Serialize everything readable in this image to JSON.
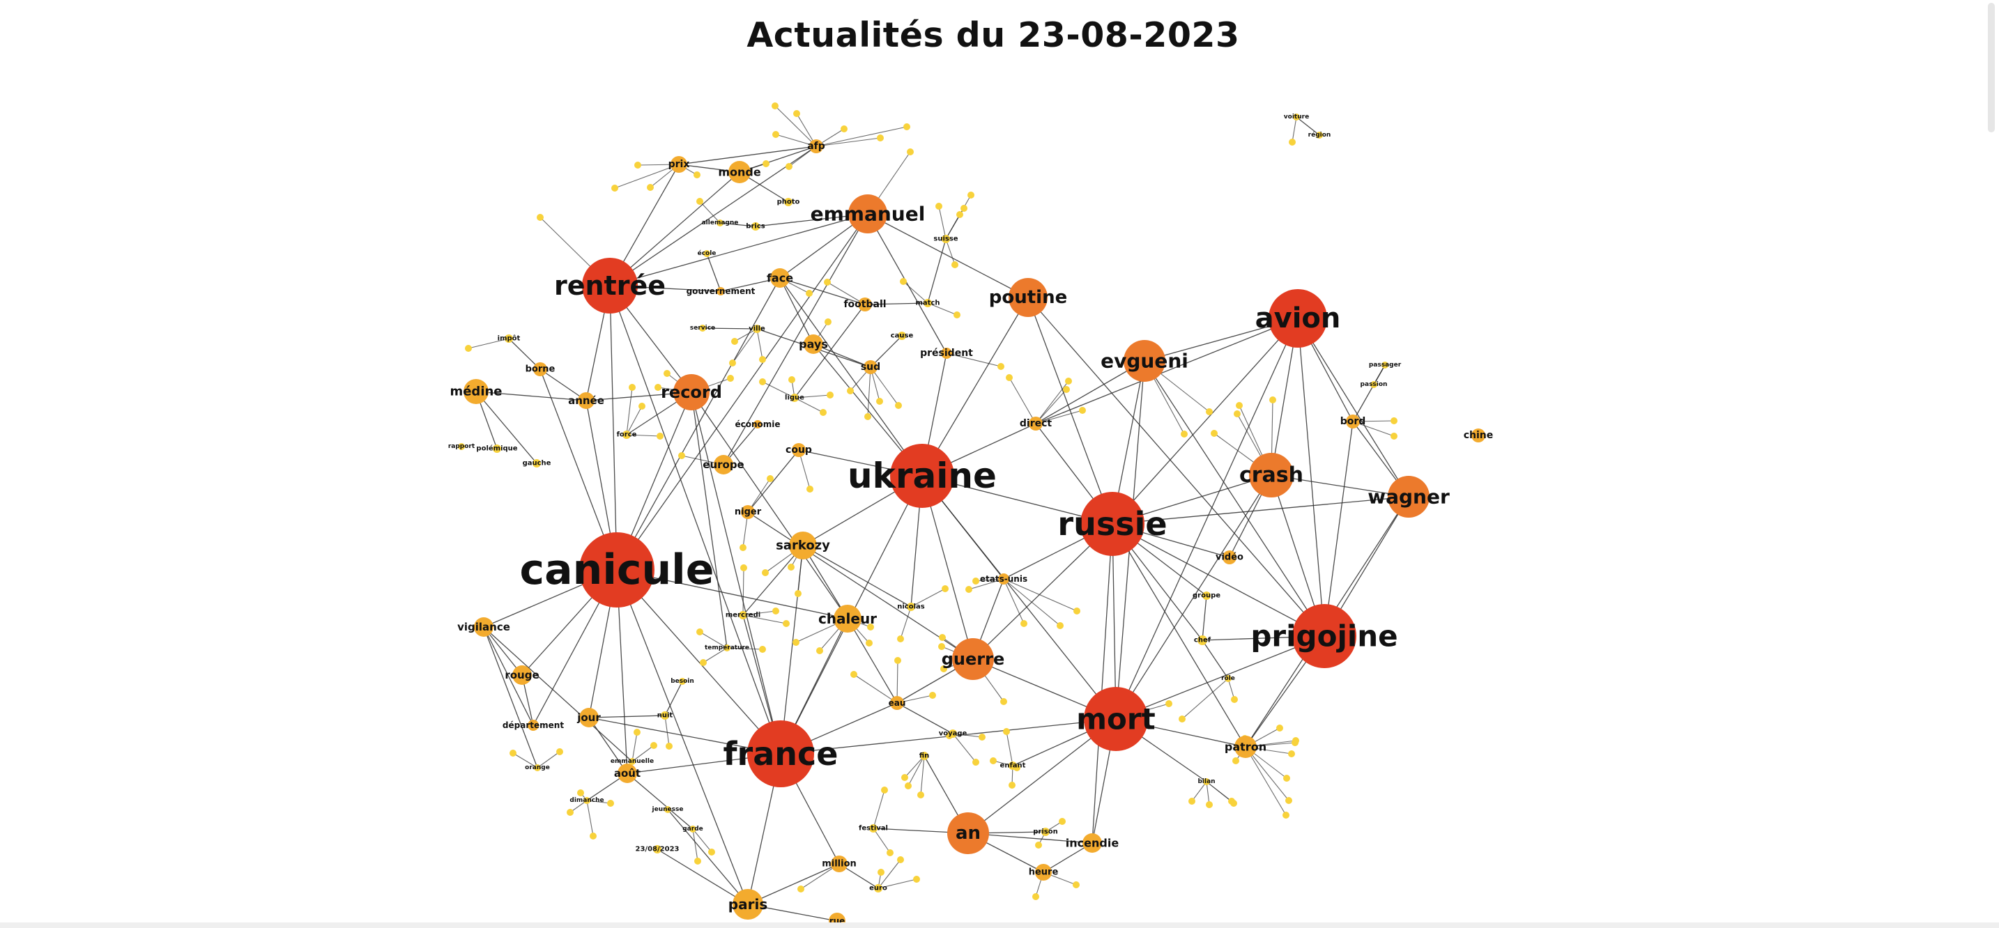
{
  "title": "Actualités du 23-08-2023",
  "colors": {
    "high": "#e23c22",
    "mid": "#ec7a2c",
    "low": "#f3ab2e",
    "tiny": "#f8d23b",
    "edge": "#2b2b2b"
  },
  "nodes": [
    {
      "id": "canicule",
      "label": "canicule",
      "group": "high"
    },
    {
      "id": "ukraine",
      "label": "ukraine",
      "group": "high"
    },
    {
      "id": "russie",
      "label": "russie",
      "group": "high"
    },
    {
      "id": "france",
      "label": "france",
      "group": "high"
    },
    {
      "id": "mort",
      "label": "mort",
      "group": "high"
    },
    {
      "id": "prigojine",
      "label": "prigojine",
      "group": "high"
    },
    {
      "id": "avion",
      "label": "avion",
      "group": "high"
    },
    {
      "id": "rentree",
      "label": "rentrée",
      "group": "high"
    },
    {
      "id": "emmanuel",
      "label": "emmanuel",
      "group": "mid"
    },
    {
      "id": "poutine",
      "label": "poutine",
      "group": "mid"
    },
    {
      "id": "evgueni",
      "label": "evgueni",
      "group": "mid"
    },
    {
      "id": "crash",
      "label": "crash",
      "group": "mid"
    },
    {
      "id": "wagner",
      "label": "wagner",
      "group": "mid"
    },
    {
      "id": "record",
      "label": "record",
      "group": "mid"
    },
    {
      "id": "guerre",
      "label": "guerre",
      "group": "mid"
    },
    {
      "id": "an",
      "label": "an",
      "group": "mid"
    },
    {
      "id": "chaleur",
      "label": "chaleur",
      "group": "low"
    },
    {
      "id": "paris",
      "label": "paris",
      "group": "low"
    },
    {
      "id": "sarkozy",
      "label": "sarkozy",
      "group": "low"
    },
    {
      "id": "medine",
      "label": "médine",
      "group": "low"
    },
    {
      "id": "monde",
      "label": "monde",
      "group": "low"
    },
    {
      "id": "prix",
      "label": "prix",
      "group": "low"
    },
    {
      "id": "afp",
      "label": "afp",
      "group": "low"
    },
    {
      "id": "face",
      "label": "face",
      "group": "low"
    },
    {
      "id": "football",
      "label": "football",
      "group": "low"
    },
    {
      "id": "gouvernement",
      "label": "gouvernement",
      "group": "low"
    },
    {
      "id": "pays",
      "label": "pays",
      "group": "low"
    },
    {
      "id": "sud",
      "label": "sud",
      "group": "low"
    },
    {
      "id": "president",
      "label": "président",
      "group": "low"
    },
    {
      "id": "direct",
      "label": "direct",
      "group": "low"
    },
    {
      "id": "bord",
      "label": "bord",
      "group": "low"
    },
    {
      "id": "chine",
      "label": "chine",
      "group": "low"
    },
    {
      "id": "economie",
      "label": "économie",
      "group": "low"
    },
    {
      "id": "coup",
      "label": "coup",
      "group": "low"
    },
    {
      "id": "europe",
      "label": "europe",
      "group": "low"
    },
    {
      "id": "niger",
      "label": "niger",
      "group": "low"
    },
    {
      "id": "annee",
      "label": "année",
      "group": "low"
    },
    {
      "id": "borne",
      "label": "borne",
      "group": "low"
    },
    {
      "id": "vigilance",
      "label": "vigilance",
      "group": "low"
    },
    {
      "id": "rouge",
      "label": "rouge",
      "group": "low"
    },
    {
      "id": "departement",
      "label": "département",
      "group": "low"
    },
    {
      "id": "jour",
      "label": "jour",
      "group": "low"
    },
    {
      "id": "aout",
      "label": "août",
      "group": "low"
    },
    {
      "id": "patron",
      "label": "patron",
      "group": "low"
    },
    {
      "id": "incendie",
      "label": "incendie",
      "group": "low"
    },
    {
      "id": "video",
      "label": "vidéo",
      "group": "low"
    },
    {
      "id": "etatsunis",
      "label": "etats-unis",
      "group": "low"
    },
    {
      "id": "nicolas",
      "label": "nicolas",
      "group": "tiny"
    },
    {
      "id": "eau",
      "label": "eau",
      "group": "low"
    },
    {
      "id": "million",
      "label": "million",
      "group": "low"
    },
    {
      "id": "heure",
      "label": "heure",
      "group": "low"
    },
    {
      "id": "rue",
      "label": "rue",
      "group": "low"
    },
    {
      "id": "euro",
      "label": "euro",
      "group": "tiny"
    },
    {
      "id": "enfant",
      "label": "enfant",
      "group": "tiny"
    },
    {
      "id": "fin",
      "label": "fin",
      "group": "tiny"
    },
    {
      "id": "chef",
      "label": "chef",
      "group": "tiny"
    },
    {
      "id": "groupe",
      "label": "groupe",
      "group": "tiny"
    },
    {
      "id": "cause",
      "label": "cause",
      "group": "tiny"
    },
    {
      "id": "match",
      "label": "match",
      "group": "tiny"
    },
    {
      "id": "suisse",
      "label": "suisse",
      "group": "tiny"
    },
    {
      "id": "photo",
      "label": "photo",
      "group": "tiny"
    },
    {
      "id": "brics",
      "label": "brics",
      "group": "tiny"
    },
    {
      "id": "ligue",
      "label": "ligue",
      "group": "tiny"
    },
    {
      "id": "force",
      "label": "force",
      "group": "tiny"
    },
    {
      "id": "mercredi",
      "label": "mercredi",
      "group": "tiny"
    },
    {
      "id": "impot",
      "label": "impôt",
      "group": "tiny"
    },
    {
      "id": "gauche",
      "label": "gauche",
      "group": "tiny"
    },
    {
      "id": "polemique",
      "label": "polémique",
      "group": "tiny"
    },
    {
      "id": "ville",
      "label": "ville",
      "group": "tiny"
    },
    {
      "id": "nuit",
      "label": "nuit",
      "group": "tiny"
    },
    {
      "id": "date",
      "label": "23/08/2023",
      "group": "tiny"
    },
    {
      "id": "festival",
      "label": "festival",
      "group": "tiny"
    },
    {
      "id": "prison",
      "label": "prison",
      "group": "tiny"
    },
    {
      "id": "voyage",
      "label": "voyage",
      "group": "tiny"
    },
    {
      "id": "temperature",
      "label": "température",
      "group": "tiny"
    },
    {
      "id": "rapport",
      "label": "rapport",
      "group": "tiny"
    },
    {
      "id": "besoin",
      "label": "besoin",
      "group": "tiny"
    },
    {
      "id": "orange",
      "label": "orange",
      "group": "tiny"
    },
    {
      "id": "jeunesse",
      "label": "jeunesse",
      "group": "tiny"
    },
    {
      "id": "emmanuelle",
      "label": "emmanuelle",
      "group": "tiny"
    },
    {
      "id": "allemagne",
      "label": "allemagne",
      "group": "tiny"
    },
    {
      "id": "garde",
      "label": "garde",
      "group": "tiny"
    },
    {
      "id": "service",
      "label": "service",
      "group": "tiny"
    },
    {
      "id": "ecole",
      "label": "école",
      "group": "tiny"
    },
    {
      "id": "dimanche",
      "label": "dimanche",
      "group": "tiny"
    },
    {
      "id": "voiture",
      "label": "voiture",
      "group": "tiny"
    },
    {
      "id": "bilan",
      "label": "bilan",
      "group": "tiny"
    },
    {
      "id": "role",
      "label": "rôle",
      "group": "tiny"
    },
    {
      "id": "passager",
      "label": "passager",
      "group": "tiny"
    },
    {
      "id": "passion",
      "label": "passion",
      "group": "tiny"
    },
    {
      "id": "region",
      "label": "région",
      "group": "tiny"
    }
  ],
  "edges": [
    [
      "canicule",
      "france"
    ],
    [
      "canicule",
      "rentree"
    ],
    [
      "canicule",
      "vigilance"
    ],
    [
      "canicule",
      "rouge"
    ],
    [
      "canicule",
      "departement"
    ],
    [
      "canicule",
      "jour"
    ],
    [
      "canicule",
      "record"
    ],
    [
      "canicule",
      "chaleur"
    ],
    [
      "canicule",
      "aout"
    ],
    [
      "canicule",
      "paris"
    ],
    [
      "canicule",
      "emmanuel"
    ],
    [
      "canicule",
      "face"
    ],
    [
      "canicule",
      "annee"
    ],
    [
      "canicule",
      "borne"
    ],
    [
      "ukraine",
      "russie"
    ],
    [
      "ukraine",
      "guerre"
    ],
    [
      "ukraine",
      "poutine"
    ],
    [
      "ukraine",
      "france"
    ],
    [
      "ukraine",
      "sarkozy"
    ],
    [
      "ukraine",
      "president"
    ],
    [
      "ukraine",
      "direct"
    ],
    [
      "ukraine",
      "face"
    ],
    [
      "ukraine",
      "pays"
    ],
    [
      "ukraine",
      "nicolas"
    ],
    [
      "ukraine",
      "mort"
    ],
    [
      "ukraine",
      "etatsunis"
    ],
    [
      "ukraine",
      "coup"
    ],
    [
      "russie",
      "prigojine"
    ],
    [
      "russie",
      "mort"
    ],
    [
      "russie",
      "avion"
    ],
    [
      "russie",
      "wagner"
    ],
    [
      "russie",
      "crash"
    ],
    [
      "russie",
      "evgueni"
    ],
    [
      "russie",
      "poutine"
    ],
    [
      "russie",
      "chef"
    ],
    [
      "russie",
      "groupe"
    ],
    [
      "russie",
      "video"
    ],
    [
      "russie",
      "guerre"
    ],
    [
      "russie",
      "etatsunis"
    ],
    [
      "russie",
      "direct"
    ],
    [
      "russie",
      "patron"
    ],
    [
      "russie",
      "incendie"
    ],
    [
      "prigojine",
      "avion"
    ],
    [
      "prigojine",
      "wagner"
    ],
    [
      "prigojine",
      "crash"
    ],
    [
      "prigojine",
      "mort"
    ],
    [
      "prigojine",
      "evgueni"
    ],
    [
      "prigojine",
      "patron"
    ],
    [
      "prigojine",
      "chef"
    ],
    [
      "prigojine",
      "bord"
    ],
    [
      "prigojine",
      "poutine"
    ],
    [
      "avion",
      "crash"
    ],
    [
      "avion",
      "wagner"
    ],
    [
      "avion",
      "bord"
    ],
    [
      "avion",
      "mort"
    ],
    [
      "avion",
      "evgueni"
    ],
    [
      "avion",
      "direct"
    ],
    [
      "mort",
      "an"
    ],
    [
      "mort",
      "patron"
    ],
    [
      "mort",
      "guerre"
    ],
    [
      "mort",
      "france"
    ],
    [
      "mort",
      "incendie"
    ],
    [
      "mort",
      "evgueni"
    ],
    [
      "mort",
      "crash"
    ],
    [
      "mort",
      "enfant"
    ],
    [
      "mort",
      "bilan"
    ],
    [
      "france",
      "paris"
    ],
    [
      "france",
      "rentree"
    ],
    [
      "france",
      "aout"
    ],
    [
      "france",
      "eau"
    ],
    [
      "france",
      "million"
    ],
    [
      "france",
      "chaleur"
    ],
    [
      "france",
      "jour"
    ],
    [
      "france",
      "sarkozy"
    ],
    [
      "france",
      "record"
    ],
    [
      "france",
      "mercredi"
    ],
    [
      "rentree",
      "monde"
    ],
    [
      "rentree",
      "prix"
    ],
    [
      "rentree",
      "annee"
    ],
    [
      "rentree",
      "record"
    ],
    [
      "rentree",
      "gouvernement"
    ],
    [
      "rentree",
      "emmanuel"
    ],
    [
      "rentree",
      "afp"
    ],
    [
      "emmanuel",
      "face"
    ],
    [
      "emmanuel",
      "president"
    ],
    [
      "emmanuel",
      "poutine"
    ],
    [
      "emmanuel",
      "europe"
    ],
    [
      "emmanuel",
      "brics"
    ],
    [
      "record",
      "annee"
    ],
    [
      "record",
      "chaleur"
    ],
    [
      "record",
      "force"
    ],
    [
      "record",
      "temperature"
    ],
    [
      "an",
      "incendie"
    ],
    [
      "an",
      "fin"
    ],
    [
      "an",
      "heure"
    ],
    [
      "an",
      "festival"
    ],
    [
      "an",
      "prison"
    ],
    [
      "guerre",
      "etatsunis"
    ],
    [
      "guerre",
      "eau"
    ],
    [
      "guerre",
      "niger"
    ],
    [
      "wagner",
      "bord"
    ],
    [
      "wagner",
      "crash"
    ],
    [
      "crash",
      "video"
    ],
    [
      "evgueni",
      "direct"
    ],
    [
      "medine",
      "polemique"
    ],
    [
      "medine",
      "gauche"
    ],
    [
      "medine",
      "annee"
    ],
    [
      "borne",
      "impot"
    ],
    [
      "borne",
      "annee"
    ],
    [
      "vigilance",
      "rouge"
    ],
    [
      "vigilance",
      "departement"
    ],
    [
      "vigilance",
      "orange"
    ],
    [
      "rouge",
      "departement"
    ],
    [
      "aout",
      "jour"
    ],
    [
      "aout",
      "dimanche"
    ],
    [
      "paris",
      "rue"
    ],
    [
      "paris",
      "million"
    ],
    [
      "paris",
      "date"
    ],
    [
      "monde",
      "prix"
    ],
    [
      "monde",
      "photo"
    ],
    [
      "prix",
      "afp"
    ],
    [
      "afp",
      "monde"
    ],
    [
      "face",
      "football"
    ],
    [
      "face",
      "pays"
    ],
    [
      "face",
      "gouvernement"
    ],
    [
      "football",
      "ligue"
    ],
    [
      "football",
      "match"
    ],
    [
      "pays",
      "sud"
    ],
    [
      "sud",
      "ville"
    ],
    [
      "coup",
      "niger"
    ],
    [
      "europe",
      "economie"
    ],
    [
      "sarkozy",
      "nicolas"
    ],
    [
      "sarkozy",
      "chaleur"
    ],
    [
      "sarkozy",
      "mercredi"
    ],
    [
      "chaleur",
      "eau"
    ],
    [
      "eau",
      "voyage"
    ],
    [
      "million",
      "euro"
    ],
    [
      "heure",
      "incendie"
    ],
    [
      "patron",
      "wagner"
    ],
    [
      "chef",
      "groupe"
    ],
    [
      "suisse",
      "match"
    ],
    [
      "cause",
      "sud"
    ],
    [
      "voiture",
      "region"
    ],
    [
      "passager",
      "bord"
    ],
    [
      "passion",
      "passager"
    ],
    [
      "nuit",
      "jour"
    ],
    [
      "besoin",
      "nuit"
    ],
    [
      "garde",
      "aout"
    ],
    [
      "service",
      "ville"
    ],
    [
      "ecole",
      "gouvernement"
    ],
    [
      "allemagne",
      "brics"
    ],
    [
      "jeunesse",
      "paris"
    ],
    [
      "emmanuelle",
      "vigilance"
    ],
    [
      "role",
      "chef"
    ]
  ]
}
